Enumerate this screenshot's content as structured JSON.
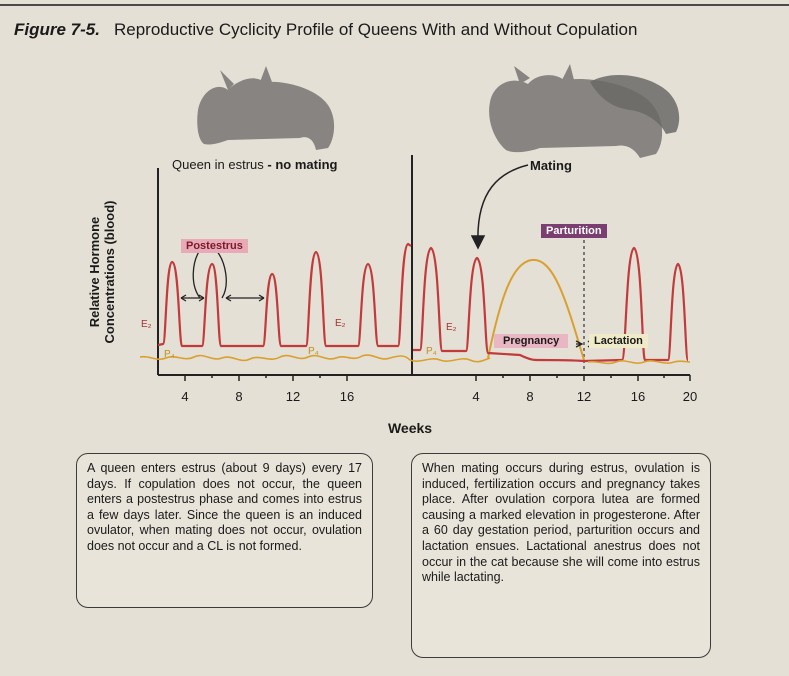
{
  "figure": {
    "number": "Figure 7-5.",
    "title": "Reproductive Cyclicity Profile of Queens With and Without Copulation"
  },
  "chart": {
    "ylabel_line1": "Relative Hormone",
    "ylabel_line2": "Concentrations (blood)",
    "xlabel": "Weeks",
    "left_ticks": [
      "4",
      "8",
      "12",
      "16"
    ],
    "right_ticks": [
      "4",
      "8",
      "12",
      "16",
      "20"
    ],
    "queen_label": "Queen in estrus",
    "queen_label_bold": "- no mating",
    "mating_label": "Mating",
    "postestrus_label": "Postestrus",
    "parturition_label": "Parturition",
    "pregnancy_label": "Pregnancy",
    "lactation_label": "Lactation",
    "e2_label": "E₂",
    "p4_label": "P₄",
    "colors": {
      "estradiol": "#c23a3a",
      "progesterone": "#d9a030"
    }
  },
  "notes": {
    "left": "A queen enters estrus (about 9 days) every 17 days.  If copulation does not occur, the queen enters a postestrus phase and comes into estrus a few days later.  Since the queen is an induced ovulator, when mating does not occur, ovulation does not occur and a CL is not formed.",
    "right": "When mating occurs during estrus, ovulation is induced, fertilization occurs and pregnancy takes place.  After ovulation corpora lutea are formed causing a marked elevation in progesterone. After a 60 day gestation period, parturition occurs and lactation ensues. Lactational anestrus does not occur in the cat because she will come into estrus while lactating."
  }
}
